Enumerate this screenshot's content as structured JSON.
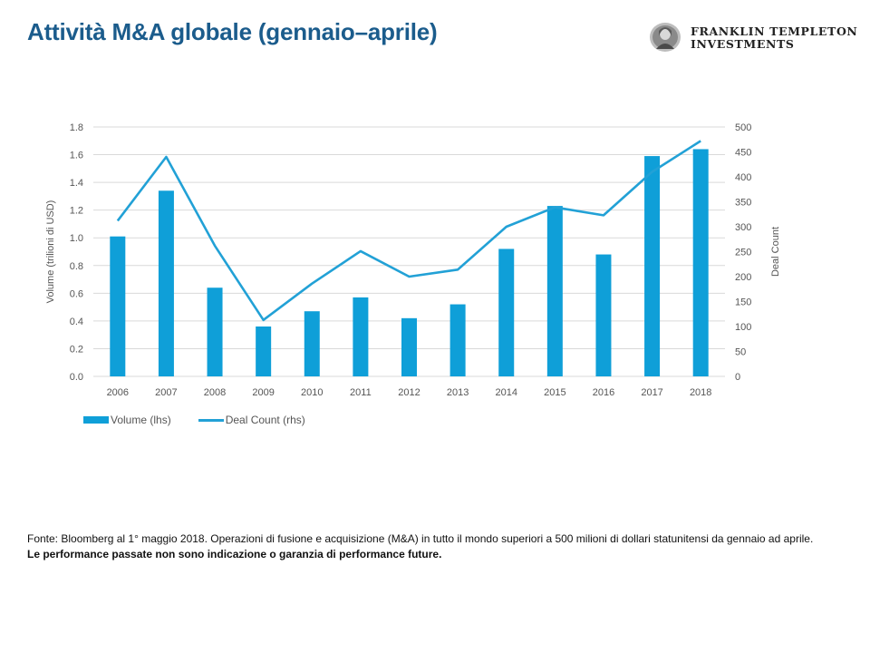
{
  "header": {
    "title": "Attività M&A globale (gennaio–aprile)",
    "logo_line1": "FRANKLIN TEMPLETON",
    "logo_line2": "INVESTMENTS",
    "logo_icon": "franklin-portrait-seal-icon"
  },
  "chart_data": {
    "type": "bar",
    "categories": [
      "2006",
      "2007",
      "2008",
      "2009",
      "2010",
      "2011",
      "2012",
      "2013",
      "2014",
      "2015",
      "2016",
      "2017",
      "2018"
    ],
    "series": [
      {
        "name": "Volume (lhs)",
        "type": "bar",
        "axis": "left",
        "color": "#0f9fd8",
        "values": [
          1.01,
          1.34,
          0.64,
          0.36,
          0.47,
          0.57,
          0.42,
          0.52,
          0.92,
          1.23,
          0.88,
          1.59,
          1.64
        ]
      },
      {
        "name": "Deal Count (rhs)",
        "type": "line",
        "axis": "right",
        "color": "#22a1d6",
        "values": [
          312,
          440,
          262,
          113,
          186,
          251,
          200,
          214,
          300,
          339,
          323,
          410,
          472
        ]
      }
    ],
    "ylabel": "Volume (trilioni di USD)",
    "y2label": "Deal Count",
    "ylim": [
      0,
      1.8
    ],
    "y2lim": [
      0,
      500
    ],
    "yticks": [
      "0.0",
      "0.2",
      "0.4",
      "0.6",
      "0.8",
      "1.0",
      "1.2",
      "1.4",
      "1.6",
      "1.8"
    ],
    "y2ticks": [
      "0",
      "50",
      "100",
      "150",
      "200",
      "250",
      "300",
      "350",
      "400",
      "450",
      "500"
    ],
    "grid": true,
    "legend_position": "bottom-left"
  },
  "legend": {
    "bar_label": "Volume (lhs)",
    "line_label": "Deal Count (rhs)"
  },
  "footer": {
    "source": "Fonte: Bloomberg al 1° maggio 2018. Operazioni di fusione e acquisizione (M&A) in tutto il mondo superiori a 500 milioni di dollari statunitensi da gennaio ad aprile.",
    "disclaimer": "Le performance passate non sono indicazione o garanzia di performance future."
  }
}
